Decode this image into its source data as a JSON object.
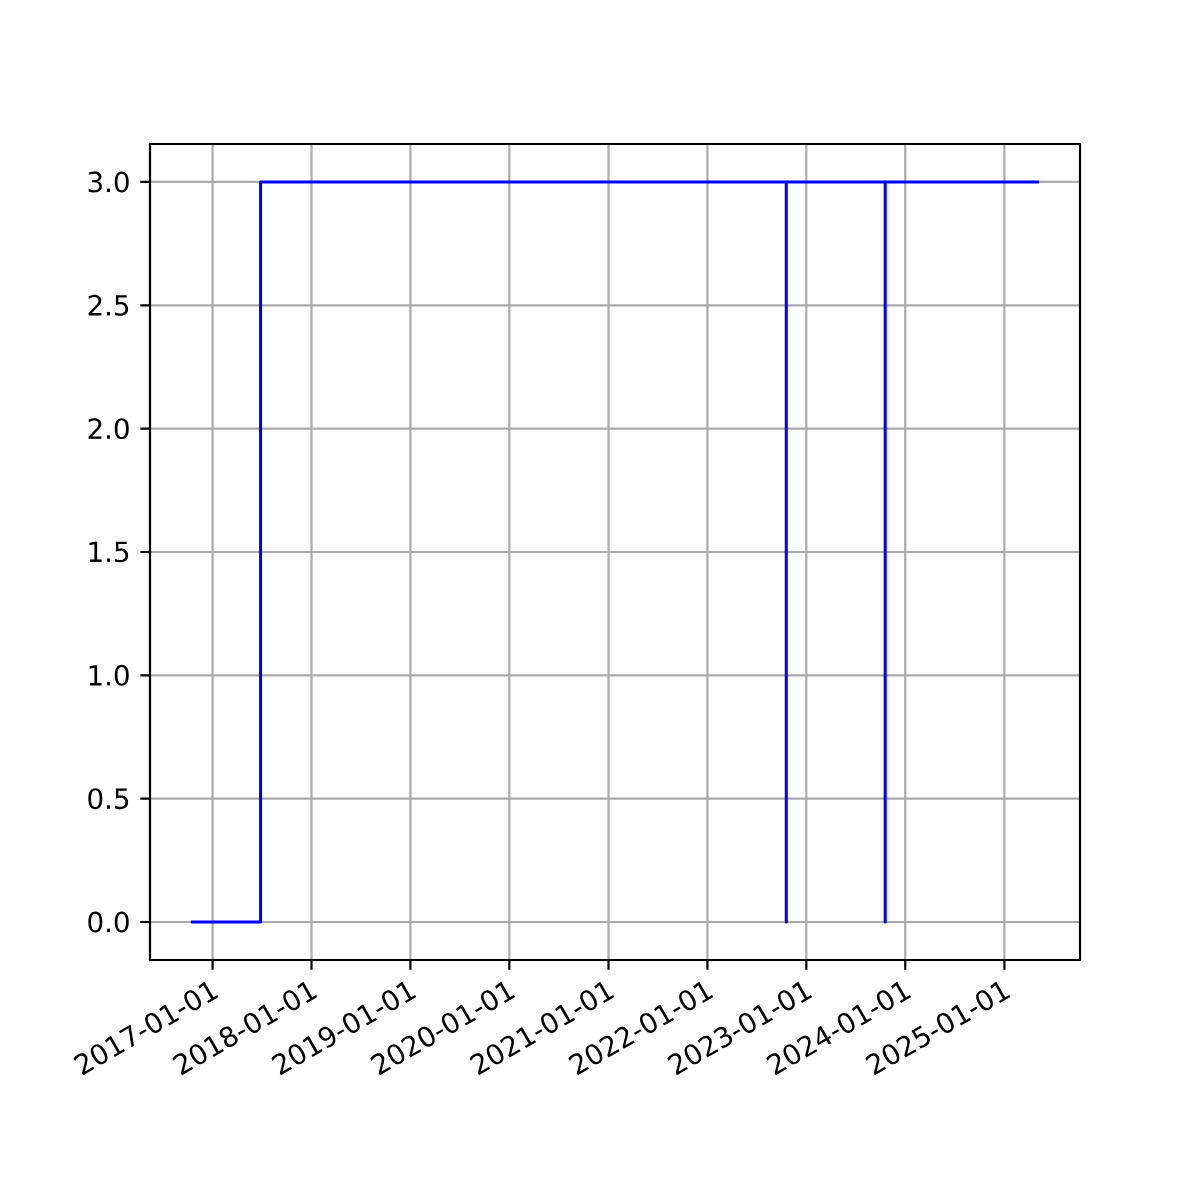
{
  "chart_data": {
    "type": "step",
    "color": "#0000ff",
    "x": [
      "2016-10-13",
      "2017-06-27",
      "2022-10-19",
      "2022-10-19",
      "2023-10-19",
      "2023-10-19",
      "2025-05-08"
    ],
    "values": [
      0,
      3,
      0,
      3,
      0,
      3,
      3
    ],
    "xlim": [
      "2016-05-15",
      "2025-10-07"
    ],
    "xticks": [
      "2017-01-01",
      "2018-01-01",
      "2019-01-01",
      "2020-01-01",
      "2021-01-01",
      "2022-01-01",
      "2023-01-01",
      "2024-01-01",
      "2025-01-01"
    ],
    "ylim": [
      -0.154,
      3.154
    ],
    "yticks": [
      {
        "value": 0,
        "label": "0.0"
      },
      {
        "value": 0.5,
        "label": "0.5"
      },
      {
        "value": 1,
        "label": "1.0"
      },
      {
        "value": 1.5,
        "label": "1.5"
      },
      {
        "value": 2,
        "label": "2.0"
      },
      {
        "value": 2.5,
        "label": "2.5"
      },
      {
        "value": 3,
        "label": "3.0"
      }
    ],
    "grid": true
  }
}
